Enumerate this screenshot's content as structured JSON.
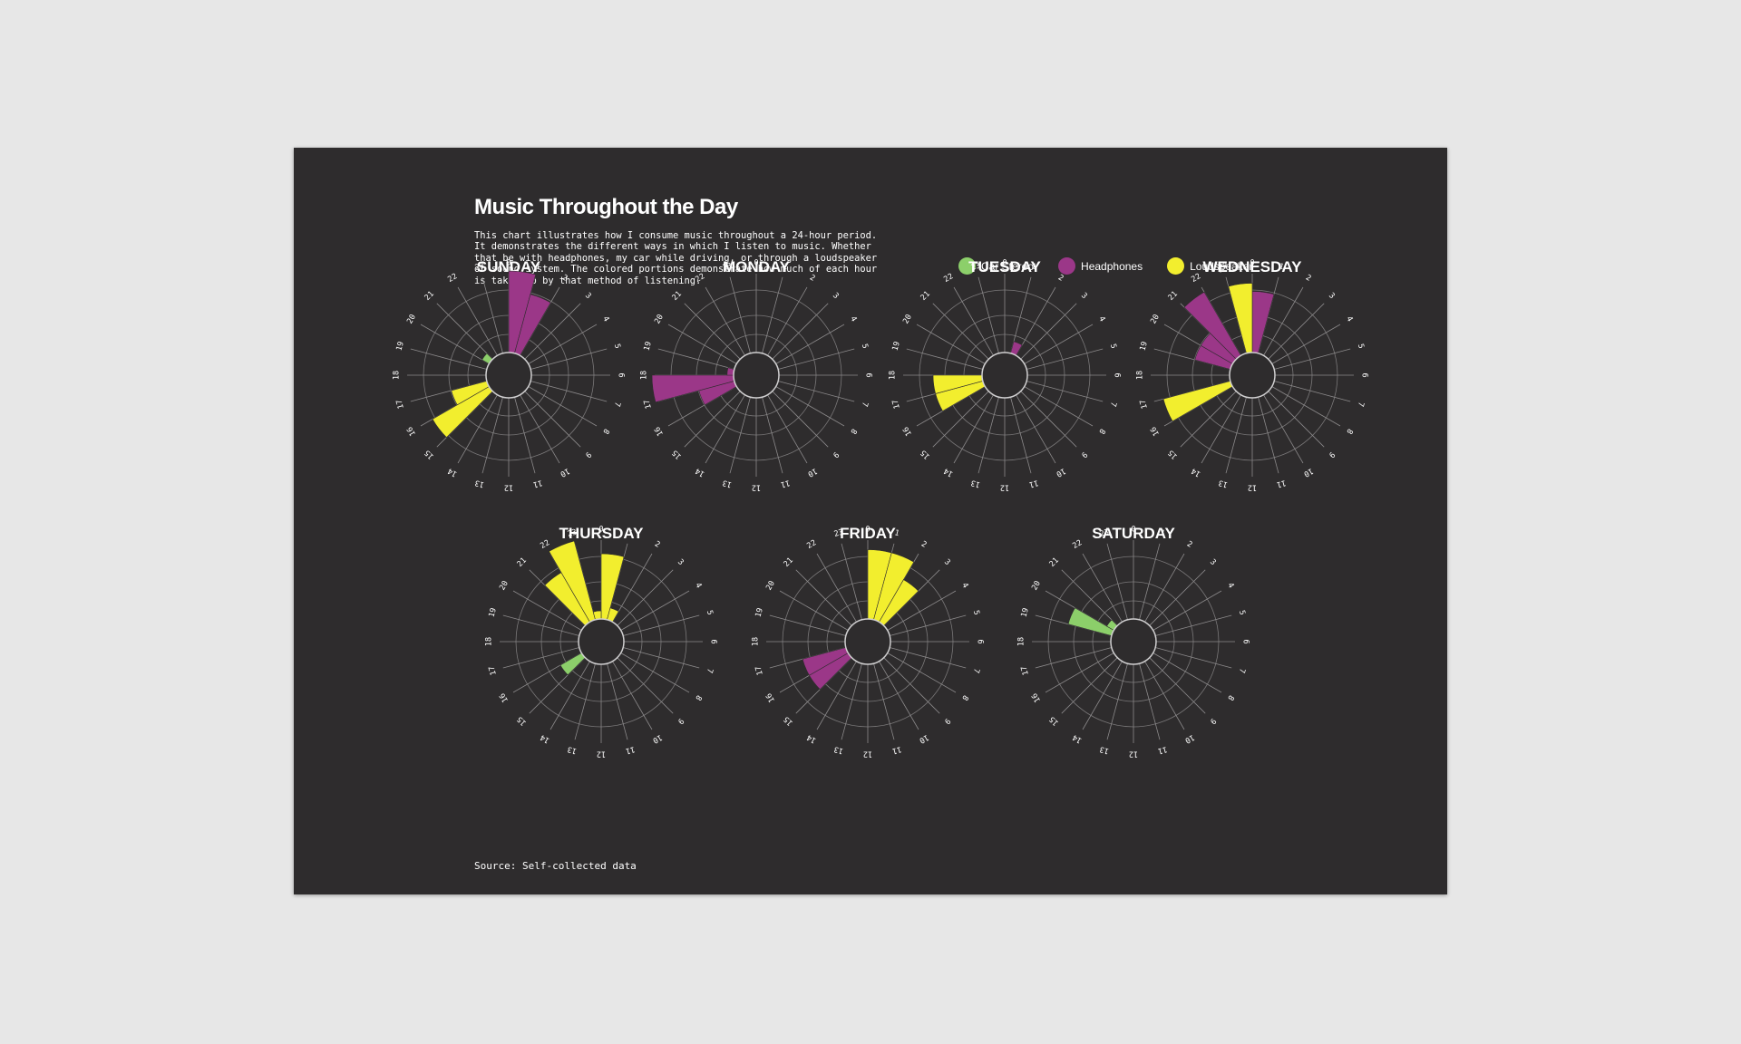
{
  "title": "Music Throughout the Day",
  "description": "This chart illustrates how I consume music throughout a 24-hour period. It demonstrates the different ways in which I listen to music. Whether that be with headphones, my car while driving, or through a loudspeaker or sound system. The colored portions demonstrate how much of each hour is taken up by that method of listening.",
  "source": "Source: Self-collected data",
  "legend": [
    {
      "label": "Car Stereo",
      "color": "#8ccf6a",
      "icon": "green-dot-icon"
    },
    {
      "label": "Headphones",
      "color": "#9b3788",
      "icon": "purple-dot-icon"
    },
    {
      "label": "Loudspeaker",
      "color": "#f2ee2e",
      "icon": "yellow-dot-icon"
    }
  ],
  "chart_data": {
    "type": "radial-bar",
    "hour_labels": [
      "0",
      "1",
      "2",
      "3",
      "4",
      "5",
      "6",
      "7",
      "8",
      "9",
      "10",
      "11",
      "12",
      "13",
      "14",
      "15",
      "16",
      "17",
      "18",
      "19",
      "20",
      "21",
      "22",
      "23"
    ],
    "value_unit": "fraction of hour",
    "ylim": [
      0,
      1
    ],
    "colors": {
      "Car Stereo": "#8ccf6a",
      "Headphones": "#9b3788",
      "Loudspeaker": "#f2ee2e"
    },
    "days": [
      {
        "name": "SUNDAY",
        "segments": [
          {
            "hour": 0,
            "method": "Headphones",
            "value": 1.0
          },
          {
            "hour": 1,
            "method": "Headphones",
            "value": 0.75
          },
          {
            "hour": 15,
            "method": "Loudspeaker",
            "value": 0.8
          },
          {
            "hour": 16,
            "method": "Loudspeaker",
            "value": 0.45
          },
          {
            "hour": 20,
            "method": "Car Stereo",
            "value": 0.1
          }
        ]
      },
      {
        "name": "MONDAY",
        "segments": [
          {
            "hour": 16,
            "method": "Car Stereo",
            "value": 0.06
          },
          {
            "hour": 16,
            "method": "Headphones",
            "value": 0.45
          },
          {
            "hour": 17,
            "method": "Headphones",
            "value": 1.0
          },
          {
            "hour": 18,
            "method": "Headphones",
            "value": 0.08
          }
        ]
      },
      {
        "name": "TUESDAY",
        "segments": [
          {
            "hour": 1,
            "method": "Headphones",
            "value": 0.15
          },
          {
            "hour": 16,
            "method": "Loudspeaker",
            "value": 0.6
          },
          {
            "hour": 17,
            "method": "Loudspeaker",
            "value": 0.6
          }
        ]
      },
      {
        "name": "WEDNESDAY",
        "segments": [
          {
            "hour": 0,
            "method": "Headphones",
            "value": 0.75
          },
          {
            "hour": 16,
            "method": "Loudspeaker",
            "value": 0.85
          },
          {
            "hour": 19,
            "method": "Headphones",
            "value": 0.45
          },
          {
            "hour": 20,
            "method": "Headphones",
            "value": 0.45
          },
          {
            "hour": 21,
            "method": "Headphones",
            "value": 0.9
          },
          {
            "hour": 23,
            "method": "Loudspeaker",
            "value": 0.85
          }
        ]
      },
      {
        "name": "THURSDAY",
        "segments": [
          {
            "hour": 0,
            "method": "Loudspeaker",
            "value": 0.8
          },
          {
            "hour": 1,
            "method": "Loudspeaker",
            "value": 0.15
          },
          {
            "hour": 15,
            "method": "Car Stereo",
            "value": 0.3
          },
          {
            "hour": 21,
            "method": "Loudspeaker",
            "value": 0.7
          },
          {
            "hour": 22,
            "method": "Loudspeaker",
            "value": 1.0
          },
          {
            "hour": 23,
            "method": "Loudspeaker",
            "value": 0.1
          }
        ]
      },
      {
        "name": "FRIDAY",
        "segments": [
          {
            "hour": 0,
            "method": "Loudspeaker",
            "value": 0.85
          },
          {
            "hour": 1,
            "method": "Loudspeaker",
            "value": 0.85
          },
          {
            "hour": 2,
            "method": "Loudspeaker",
            "value": 0.6
          },
          {
            "hour": 15,
            "method": "Headphones",
            "value": 0.55
          },
          {
            "hour": 16,
            "method": "Headphones",
            "value": 0.55
          }
        ]
      },
      {
        "name": "SATURDAY",
        "segments": [
          {
            "hour": 19,
            "method": "Car Stereo",
            "value": 0.55
          },
          {
            "hour": 20,
            "method": "Car Stereo",
            "value": 0.1
          }
        ]
      }
    ]
  }
}
